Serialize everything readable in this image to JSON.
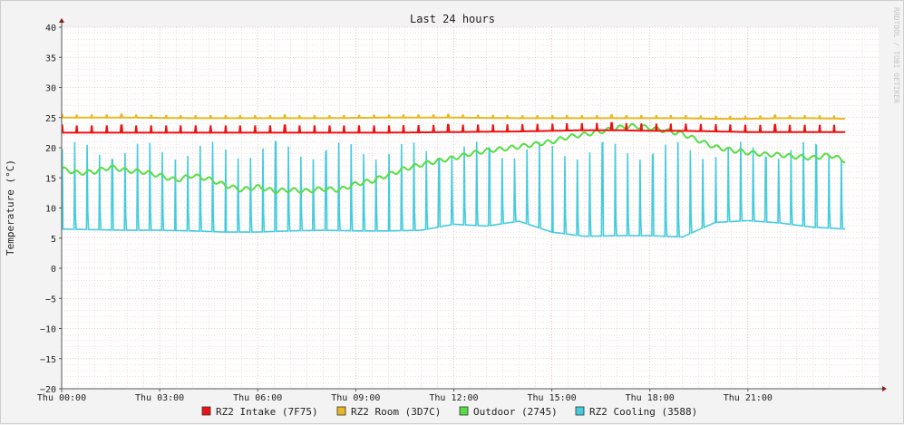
{
  "chart_data": {
    "type": "line",
    "title": "Last 24 hours",
    "ylabel": "Temperature (°C)",
    "watermark": "RRDTOOL / TOBI OETIKER",
    "ylim": [
      -20,
      40
    ],
    "xlim": [
      0,
      25
    ],
    "x_unit": "hours since Thu 00:00",
    "yticks": [
      -20,
      -15,
      -10,
      -5,
      0,
      5,
      10,
      15,
      20,
      25,
      30,
      35,
      40
    ],
    "ytick_labels": [
      "−20",
      "−15",
      "−10",
      "−5",
      "0",
      "5",
      "10",
      "15",
      "20",
      "25",
      "30",
      "35",
      "40"
    ],
    "xticks": [
      0,
      3,
      6,
      9,
      12,
      15,
      18,
      21
    ],
    "xtick_labels": [
      "Thu 00:00",
      "Thu 03:00",
      "Thu 06:00",
      "Thu 09:00",
      "Thu 12:00",
      "Thu 15:00",
      "Thu 18:00",
      "Thu 21:00"
    ],
    "grid": true,
    "legend_position": "bottom",
    "series": [
      {
        "name": "RZ2 Intake (7F75)",
        "color": "#ee1111",
        "x": [
          0,
          2,
          4,
          6,
          8,
          10,
          12,
          14,
          15,
          16,
          17,
          18,
          19,
          20,
          21,
          22,
          23,
          24
        ],
        "values": [
          22.5,
          22.5,
          22.5,
          22.5,
          22.5,
          22.5,
          22.6,
          22.7,
          22.8,
          22.9,
          22.9,
          22.8,
          22.8,
          22.7,
          22.6,
          22.6,
          22.6,
          22.6
        ]
      },
      {
        "name": "RZ2 Room (3D7C)",
        "color": "#e8b820",
        "x": [
          0,
          2,
          4,
          6,
          8,
          10,
          12,
          14,
          15,
          16,
          17,
          18,
          19,
          20,
          21,
          22,
          23,
          24
        ],
        "values": [
          25.0,
          25.0,
          24.9,
          24.9,
          24.9,
          25.0,
          25.0,
          24.9,
          24.9,
          24.9,
          24.9,
          24.9,
          24.9,
          24.8,
          24.8,
          24.9,
          24.9,
          24.8
        ]
      },
      {
        "name": "Outdoor (2745)",
        "color": "#55dd44",
        "x": [
          0,
          0.5,
          1,
          1.5,
          2,
          2.5,
          3,
          3.5,
          4,
          4.5,
          5,
          5.5,
          6,
          6.5,
          7,
          7.5,
          8,
          8.5,
          9,
          9.5,
          10,
          10.5,
          11,
          11.5,
          12,
          12.5,
          13,
          13.5,
          14,
          14.5,
          15,
          15.5,
          16,
          16.5,
          17,
          17.5,
          18,
          18.5,
          19,
          19.5,
          20,
          20.5,
          21,
          21.5,
          22,
          22.5,
          23,
          23.5,
          24
        ],
        "values": [
          16.5,
          15.8,
          16.0,
          16.8,
          16.2,
          16.0,
          15.4,
          14.6,
          15.4,
          14.8,
          13.8,
          13.0,
          13.5,
          12.8,
          13.0,
          12.8,
          13.2,
          13.0,
          14.0,
          14.5,
          15.5,
          16.5,
          17.2,
          17.8,
          18.3,
          19.0,
          19.5,
          19.8,
          20.2,
          20.6,
          21.0,
          21.8,
          22.2,
          22.7,
          23.3,
          23.6,
          23.3,
          22.8,
          22.3,
          21.2,
          20.1,
          19.6,
          19.2,
          18.9,
          18.8,
          18.5,
          18.3,
          18.8,
          17.8
        ]
      },
      {
        "name": "RZ2 Cooling (3588)",
        "color": "#44ccdd",
        "x": [
          0,
          1,
          2,
          3,
          4,
          5,
          6,
          7,
          8,
          9,
          10,
          11,
          12,
          13,
          14,
          15,
          16,
          17,
          18,
          19,
          20,
          21,
          22,
          23,
          24
        ],
        "values": [
          6.5,
          6.4,
          6.3,
          6.3,
          6.2,
          6.0,
          6.0,
          6.2,
          6.3,
          6.2,
          6.2,
          6.3,
          7.3,
          7.0,
          7.8,
          6.0,
          5.3,
          5.4,
          5.4,
          5.2,
          7.6,
          7.9,
          7.5,
          6.8,
          6.5
        ]
      }
    ]
  }
}
